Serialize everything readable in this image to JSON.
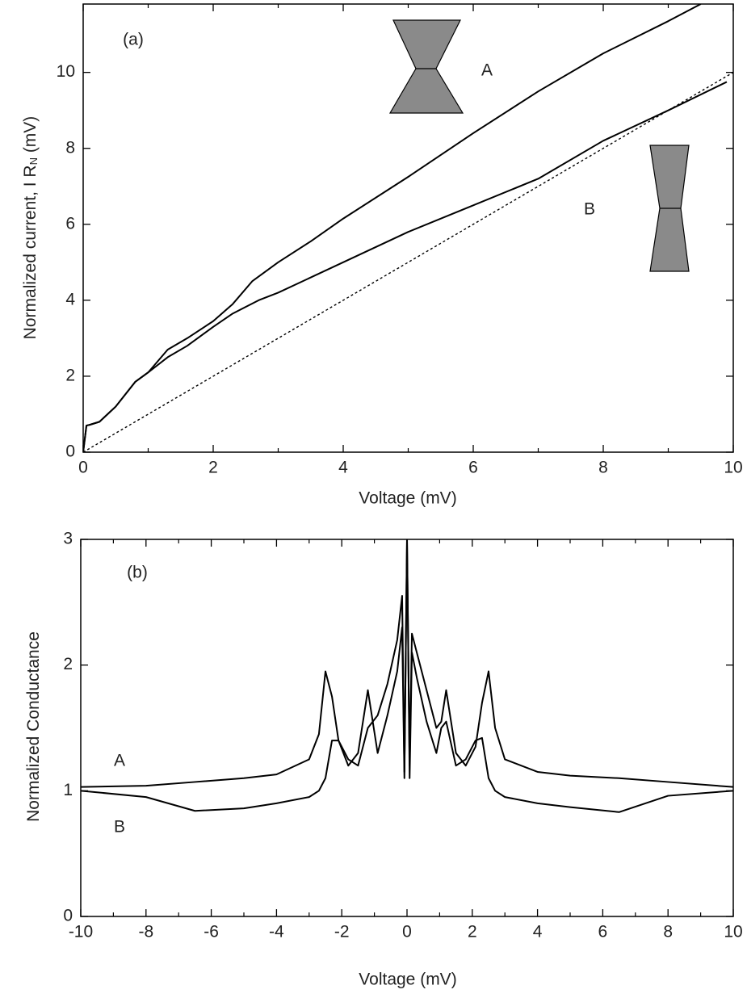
{
  "chart_data": [
    {
      "type": "line",
      "annotation": "(a)",
      "xlabel": "Voltage (mV)",
      "ylabel": [
        "Normalized current, I R",
        "N",
        " (mV)"
      ],
      "xlim": [
        0,
        10
      ],
      "xticks": [
        0,
        2,
        4,
        6,
        8,
        10
      ],
      "xminorticks": [
        1,
        3,
        5,
        7,
        9
      ],
      "ylim": [
        0,
        11.8
      ],
      "yticks": [
        0,
        2,
        4,
        6,
        8,
        10
      ],
      "series": [
        {
          "name": "A",
          "color": "#000000",
          "dash": false,
          "x": [
            0,
            0.05,
            0.1,
            0.25,
            0.5,
            0.8,
            1.0,
            1.3,
            1.6,
            2.0,
            2.3,
            2.6,
            3.0,
            3.5,
            4.0,
            5.0,
            6.0,
            7.0,
            8.0,
            9.0,
            9.5
          ],
          "values": [
            0,
            0.7,
            0.72,
            0.8,
            1.2,
            1.85,
            2.1,
            2.7,
            3.0,
            3.45,
            3.9,
            4.5,
            5.0,
            5.55,
            6.15,
            7.25,
            8.4,
            9.5,
            10.5,
            11.35,
            11.8
          ]
        },
        {
          "name": "B",
          "color": "#000000",
          "dash": false,
          "x": [
            0,
            0.05,
            0.1,
            0.25,
            0.5,
            0.8,
            1.0,
            1.3,
            1.6,
            2.0,
            2.3,
            2.7,
            3.0,
            4.0,
            5.0,
            6.0,
            7.0,
            8.0,
            9.0,
            9.9
          ],
          "values": [
            0,
            0.7,
            0.72,
            0.8,
            1.2,
            1.85,
            2.1,
            2.5,
            2.8,
            3.3,
            3.65,
            4.0,
            4.2,
            5.0,
            5.8,
            6.5,
            7.2,
            8.2,
            9.0,
            9.75
          ]
        },
        {
          "color": "#000000",
          "dash": true,
          "x": [
            0,
            10
          ],
          "values": [
            0,
            10
          ]
        }
      ]
    },
    {
      "type": "line",
      "annotation": "(b)",
      "xlabel": "Voltage (mV)",
      "ylabel": [
        "Normalized Conductance"
      ],
      "xlim": [
        -10,
        10
      ],
      "xticks": [
        -10,
        -8,
        -6,
        -4,
        -2,
        0,
        2,
        4,
        6,
        8,
        10
      ],
      "xminorticks": [
        -9,
        -7,
        -5,
        -3,
        -1,
        1,
        3,
        5,
        7,
        9
      ],
      "ylim": [
        0,
        3
      ],
      "yticks": [
        0,
        1,
        2,
        3
      ],
      "x": [
        -10,
        -8,
        -6.5,
        -5,
        -4,
        -3,
        -2.7,
        -2.5,
        -2.3,
        -2.1,
        -1.8,
        -1.5,
        -1.2,
        -1.05,
        -0.9,
        -0.6,
        -0.3,
        -0.15,
        -0.08,
        0,
        0.08,
        0.15,
        0.3,
        0.6,
        0.9,
        1.05,
        1.2,
        1.5,
        1.8,
        2.1,
        2.3,
        2.5,
        2.7,
        3,
        4,
        5,
        6.5,
        8,
        10
      ],
      "series": [
        {
          "name": "A",
          "color": "#000000",
          "values": [
            1.03,
            1.04,
            1.07,
            1.1,
            1.13,
            1.25,
            1.45,
            1.95,
            1.75,
            1.4,
            1.2,
            1.3,
            1.8,
            1.55,
            1.6,
            1.85,
            2.2,
            2.55,
            1.15,
            3,
            1.2,
            2.25,
            2.1,
            1.8,
            1.5,
            1.55,
            1.8,
            1.3,
            1.2,
            1.35,
            1.7,
            1.95,
            1.5,
            1.25,
            1.15,
            1.12,
            1.1,
            1.07,
            1.03
          ]
        },
        {
          "name": "B",
          "color": "#000000",
          "values": [
            1.0,
            0.95,
            0.84,
            0.86,
            0.9,
            0.95,
            1.0,
            1.1,
            1.4,
            1.4,
            1.25,
            1.2,
            1.5,
            1.55,
            1.3,
            1.6,
            1.95,
            2.3,
            1.1,
            3,
            1.1,
            2.1,
            1.9,
            1.55,
            1.3,
            1.5,
            1.55,
            1.2,
            1.25,
            1.4,
            1.42,
            1.1,
            1.0,
            0.95,
            0.9,
            0.87,
            0.83,
            0.96,
            1.0
          ]
        }
      ]
    }
  ]
}
